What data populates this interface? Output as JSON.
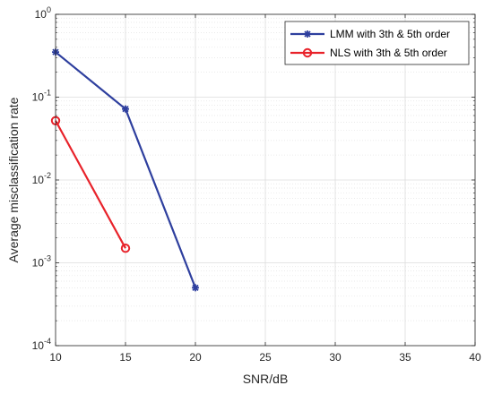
{
  "chart_data": {
    "type": "line",
    "title": "",
    "xlabel": "SNR/dB",
    "ylabel": "Average misclassification rate",
    "xlim": [
      10,
      40
    ],
    "ylim": [
      0.0001,
      1
    ],
    "yscale": "log",
    "x_ticks": [
      10,
      15,
      20,
      25,
      30,
      35,
      40
    ],
    "y_ticks": [
      {
        "value": 1,
        "base": "10",
        "exp": "0"
      },
      {
        "value": 0.1,
        "base": "10",
        "exp": "-1"
      },
      {
        "value": 0.01,
        "base": "10",
        "exp": "-2"
      },
      {
        "value": 0.001,
        "base": "10",
        "exp": "-3"
      },
      {
        "value": 0.0001,
        "base": "10",
        "exp": "-4"
      }
    ],
    "grid": true,
    "minor_grid": true,
    "legend_position": "top-right",
    "series": [
      {
        "name": "LMM with 3th & 5th order",
        "color": "#2e3f9e",
        "marker": "asterisk",
        "x": [
          10,
          15,
          20
        ],
        "y": [
          0.35,
          0.072,
          0.0005
        ]
      },
      {
        "name": "NLS with 3th & 5th order",
        "color": "#e8222a",
        "marker": "circle",
        "x": [
          10,
          15
        ],
        "y": [
          0.052,
          0.0015
        ]
      }
    ]
  }
}
